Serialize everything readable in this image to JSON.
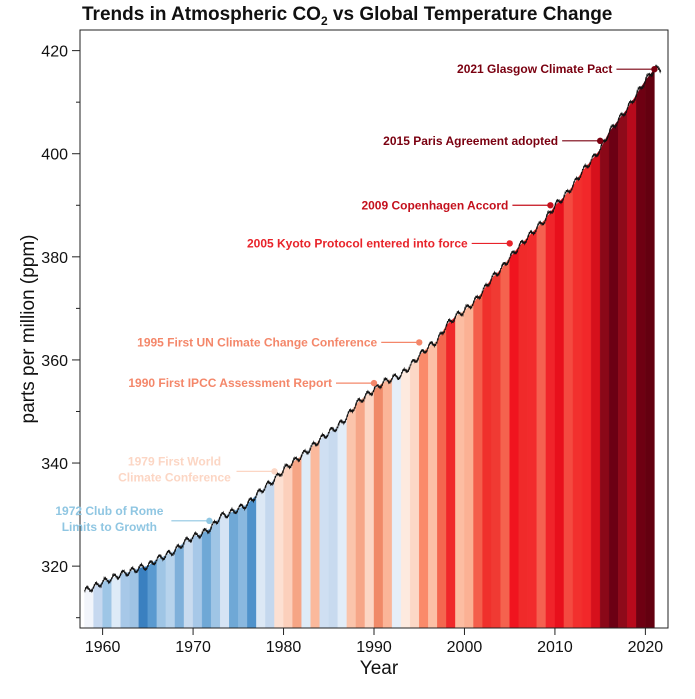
{
  "chart_data": {
    "type": "area",
    "title": "Trends in Atmospheric CO",
    "title_sub": "2",
    "title_rest": " vs Global Temperature Change",
    "xlabel": "Year",
    "ylabel": "parts per million (ppm)",
    "xlim": [
      1957.5,
      2022.5
    ],
    "ylim": [
      308,
      424
    ],
    "x_ticks": [
      1960,
      1970,
      1980,
      1990,
      2000,
      2010,
      2020
    ],
    "x_tick_labels": [
      "1960",
      "1970",
      "1980",
      "1990",
      "2000",
      "2010",
      "2020"
    ],
    "y_ticks": [
      320,
      340,
      360,
      380,
      400,
      420
    ],
    "y_tick_labels": [
      "320",
      "340",
      "360",
      "380",
      "400",
      "420"
    ],
    "y_minor_ticks": [
      310,
      330,
      350,
      370,
      390,
      410
    ],
    "grid": false,
    "series": [
      {
        "years": [
          1958,
          1959,
          1960,
          1961,
          1962,
          1963,
          1964,
          1965,
          1966,
          1967,
          1968,
          1969,
          1970,
          1971,
          1972,
          1973,
          1974,
          1975,
          1976,
          1977,
          1978,
          1979,
          1980,
          1981,
          1982,
          1983,
          1984,
          1985,
          1986,
          1987,
          1988,
          1989,
          1990,
          1991,
          1992,
          1993,
          1994,
          1995,
          1996,
          1997,
          1998,
          1999,
          2000,
          2001,
          2002,
          2003,
          2004,
          2005,
          2006,
          2007,
          2008,
          2009,
          2010,
          2011,
          2012,
          2013,
          2014,
          2015,
          2016,
          2017,
          2018,
          2019,
          2020,
          2021
        ],
        "values": [
          315.2,
          315.9,
          316.9,
          317.6,
          318.4,
          318.9,
          319.6,
          320.0,
          321.3,
          322.1,
          323.0,
          324.6,
          325.7,
          326.3,
          327.4,
          329.6,
          330.2,
          331.1,
          332.0,
          333.8,
          335.4,
          336.8,
          338.7,
          340.1,
          341.4,
          342.9,
          344.5,
          345.9,
          347.1,
          348.9,
          351.4,
          352.9,
          354.2,
          355.6,
          356.4,
          357.1,
          358.8,
          360.8,
          362.5,
          363.7,
          366.7,
          368.4,
          369.6,
          371.1,
          373.2,
          375.8,
          377.5,
          379.8,
          381.9,
          383.8,
          385.6,
          387.4,
          389.9,
          391.6,
          393.8,
          396.5,
          398.6,
          400.8,
          404.2,
          406.5,
          408.7,
          411.4,
          414.2,
          416.4
        ]
      }
    ],
    "temperature_stripes": [
      {
        "year": 1958,
        "color": "#f2f5fb"
      },
      {
        "year": 1959,
        "color": "#c6d8ef"
      },
      {
        "year": 1960,
        "color": "#9ec6e6"
      },
      {
        "year": 1961,
        "color": "#deebf7"
      },
      {
        "year": 1962,
        "color": "#a7c8e8"
      },
      {
        "year": 1963,
        "color": "#9fc3e4"
      },
      {
        "year": 1964,
        "color": "#3a80c0"
      },
      {
        "year": 1965,
        "color": "#5a9ad0"
      },
      {
        "year": 1966,
        "color": "#9fc5e5"
      },
      {
        "year": 1967,
        "color": "#b7d3ec"
      },
      {
        "year": 1968,
        "color": "#7fb0da"
      },
      {
        "year": 1969,
        "color": "#c9dbef"
      },
      {
        "year": 1970,
        "color": "#a7c8e8"
      },
      {
        "year": 1971,
        "color": "#6fa8d6"
      },
      {
        "year": 1972,
        "color": "#9fc5e5"
      },
      {
        "year": 1973,
        "color": "#d6e4f4"
      },
      {
        "year": 1974,
        "color": "#6fa8d6"
      },
      {
        "year": 1975,
        "color": "#8ab8df"
      },
      {
        "year": 1976,
        "color": "#4f92cb"
      },
      {
        "year": 1977,
        "color": "#dce8f5"
      },
      {
        "year": 1978,
        "color": "#c5d8ee"
      },
      {
        "year": 1979,
        "color": "#fde0d2"
      },
      {
        "year": 1980,
        "color": "#fcd0bc"
      },
      {
        "year": 1981,
        "color": "#f6a585"
      },
      {
        "year": 1982,
        "color": "#deebf7"
      },
      {
        "year": 1983,
        "color": "#fbb99c"
      },
      {
        "year": 1984,
        "color": "#cfdff2"
      },
      {
        "year": 1985,
        "color": "#c8daef"
      },
      {
        "year": 1986,
        "color": "#e2edf8"
      },
      {
        "year": 1987,
        "color": "#fbc4ab"
      },
      {
        "year": 1988,
        "color": "#f6a688"
      },
      {
        "year": 1989,
        "color": "#fcd6c4"
      },
      {
        "year": 1990,
        "color": "#f08a68"
      },
      {
        "year": 1991,
        "color": "#fbb598"
      },
      {
        "year": 1992,
        "color": "#e6eef8"
      },
      {
        "year": 1993,
        "color": "#fdeadf"
      },
      {
        "year": 1994,
        "color": "#fcd8c6"
      },
      {
        "year": 1995,
        "color": "#fa8a6a"
      },
      {
        "year": 1996,
        "color": "#fcc0a6"
      },
      {
        "year": 1997,
        "color": "#f4674f"
      },
      {
        "year": 1998,
        "color": "#f0282a"
      },
      {
        "year": 1999,
        "color": "#fcbda2"
      },
      {
        "year": 2000,
        "color": "#fbb194"
      },
      {
        "year": 2001,
        "color": "#f45e4b"
      },
      {
        "year": 2002,
        "color": "#f0302c"
      },
      {
        "year": 2003,
        "color": "#f03a33"
      },
      {
        "year": 2004,
        "color": "#f5624e"
      },
      {
        "year": 2005,
        "color": "#f0141f"
      },
      {
        "year": 2006,
        "color": "#f02a2a"
      },
      {
        "year": 2007,
        "color": "#f22b2c"
      },
      {
        "year": 2008,
        "color": "#f56050"
      },
      {
        "year": 2009,
        "color": "#f0242a"
      },
      {
        "year": 2010,
        "color": "#e8101c"
      },
      {
        "year": 2011,
        "color": "#f44a40"
      },
      {
        "year": 2012,
        "color": "#f2302e"
      },
      {
        "year": 2013,
        "color": "#f2282a"
      },
      {
        "year": 2014,
        "color": "#d6101c"
      },
      {
        "year": 2015,
        "color": "#8a0818"
      },
      {
        "year": 2016,
        "color": "#6c0014"
      },
      {
        "year": 2017,
        "color": "#8e0a1a"
      },
      {
        "year": 2018,
        "color": "#b80a1c"
      },
      {
        "year": 2019,
        "color": "#6e0012"
      },
      {
        "year": 2020,
        "color": "#640010"
      }
    ],
    "annotations": [
      {
        "lines": [
          "2021 Glasgow Climate Pact"
        ],
        "year": 2021,
        "value": 416.4,
        "label_y": 416.4,
        "color": "#7a0010"
      },
      {
        "lines": [
          "2015 Paris Agreement adopted"
        ],
        "year": 2015,
        "value": 402.5,
        "label_y": 402.5,
        "color": "#7a0010"
      },
      {
        "lines": [
          "2009 Copenhagen Accord"
        ],
        "year": 2009.5,
        "value": 390.0,
        "label_y": 390.0,
        "color": "#c4101c"
      },
      {
        "lines": [
          "2005 Kyoto Protocol entered into force"
        ],
        "year": 2005,
        "value": 382.6,
        "label_y": 382.6,
        "color": "#e8232a"
      },
      {
        "lines": [
          "1995 First UN Climate Change Conference"
        ],
        "year": 1995,
        "value": 363.4,
        "label_y": 363.4,
        "color": "#f4876a"
      },
      {
        "lines": [
          "1990 First IPCC Assessment Report"
        ],
        "year": 1990,
        "value": 355.5,
        "label_y": 355.5,
        "color": "#f4876a"
      },
      {
        "lines": [
          "1979 First World",
          "Climate Conference"
        ],
        "year": 1979,
        "value": 338.0,
        "label_y": 338.0,
        "color": "#fcd6c4"
      },
      {
        "lines": [
          "1972 Club of Rome",
          "Limits to Growth"
        ],
        "year": 1971.8,
        "value": 328.4,
        "label_y": 328.4,
        "color": "#8fc6e2"
      }
    ]
  }
}
